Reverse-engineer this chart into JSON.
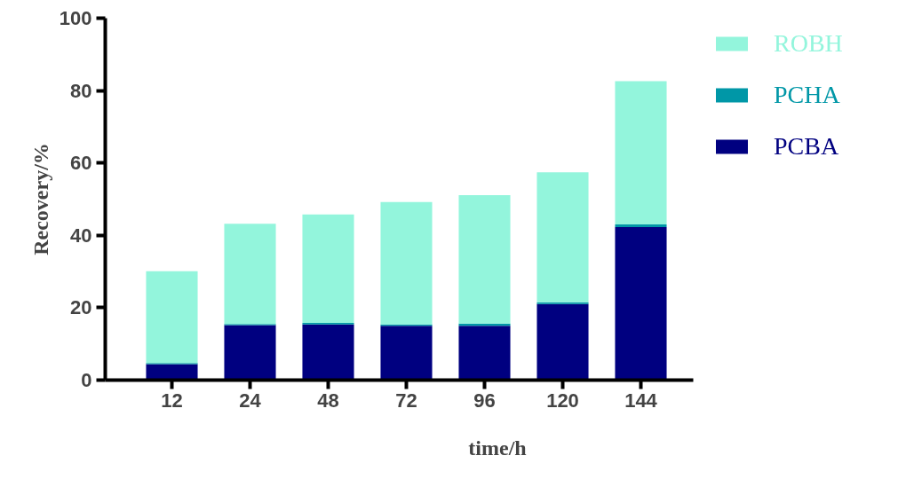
{
  "chart_data": {
    "type": "bar",
    "stacked": true,
    "xlabel": "time/h",
    "ylabel": "Recovery/%",
    "categories": [
      "12",
      "24",
      "48",
      "72",
      "96",
      "120",
      "144"
    ],
    "series": [
      {
        "name": "PCBA",
        "color": "#000080",
        "values": [
          4.4,
          15.2,
          15.4,
          15.0,
          15.0,
          21.0,
          42.3
        ]
      },
      {
        "name": "PCHA",
        "color": "#0097a7",
        "values": [
          0.3,
          0.3,
          0.4,
          0.4,
          0.6,
          0.5,
          0.7
        ]
      },
      {
        "name": "ROBH",
        "color": "#93f5dc",
        "values": [
          25.4,
          27.7,
          30.0,
          33.8,
          35.5,
          35.9,
          39.6
        ]
      }
    ],
    "ylim": [
      0,
      100
    ],
    "yticks": [
      0,
      20,
      40,
      60,
      80,
      100
    ],
    "grid": false,
    "legend": "right"
  }
}
